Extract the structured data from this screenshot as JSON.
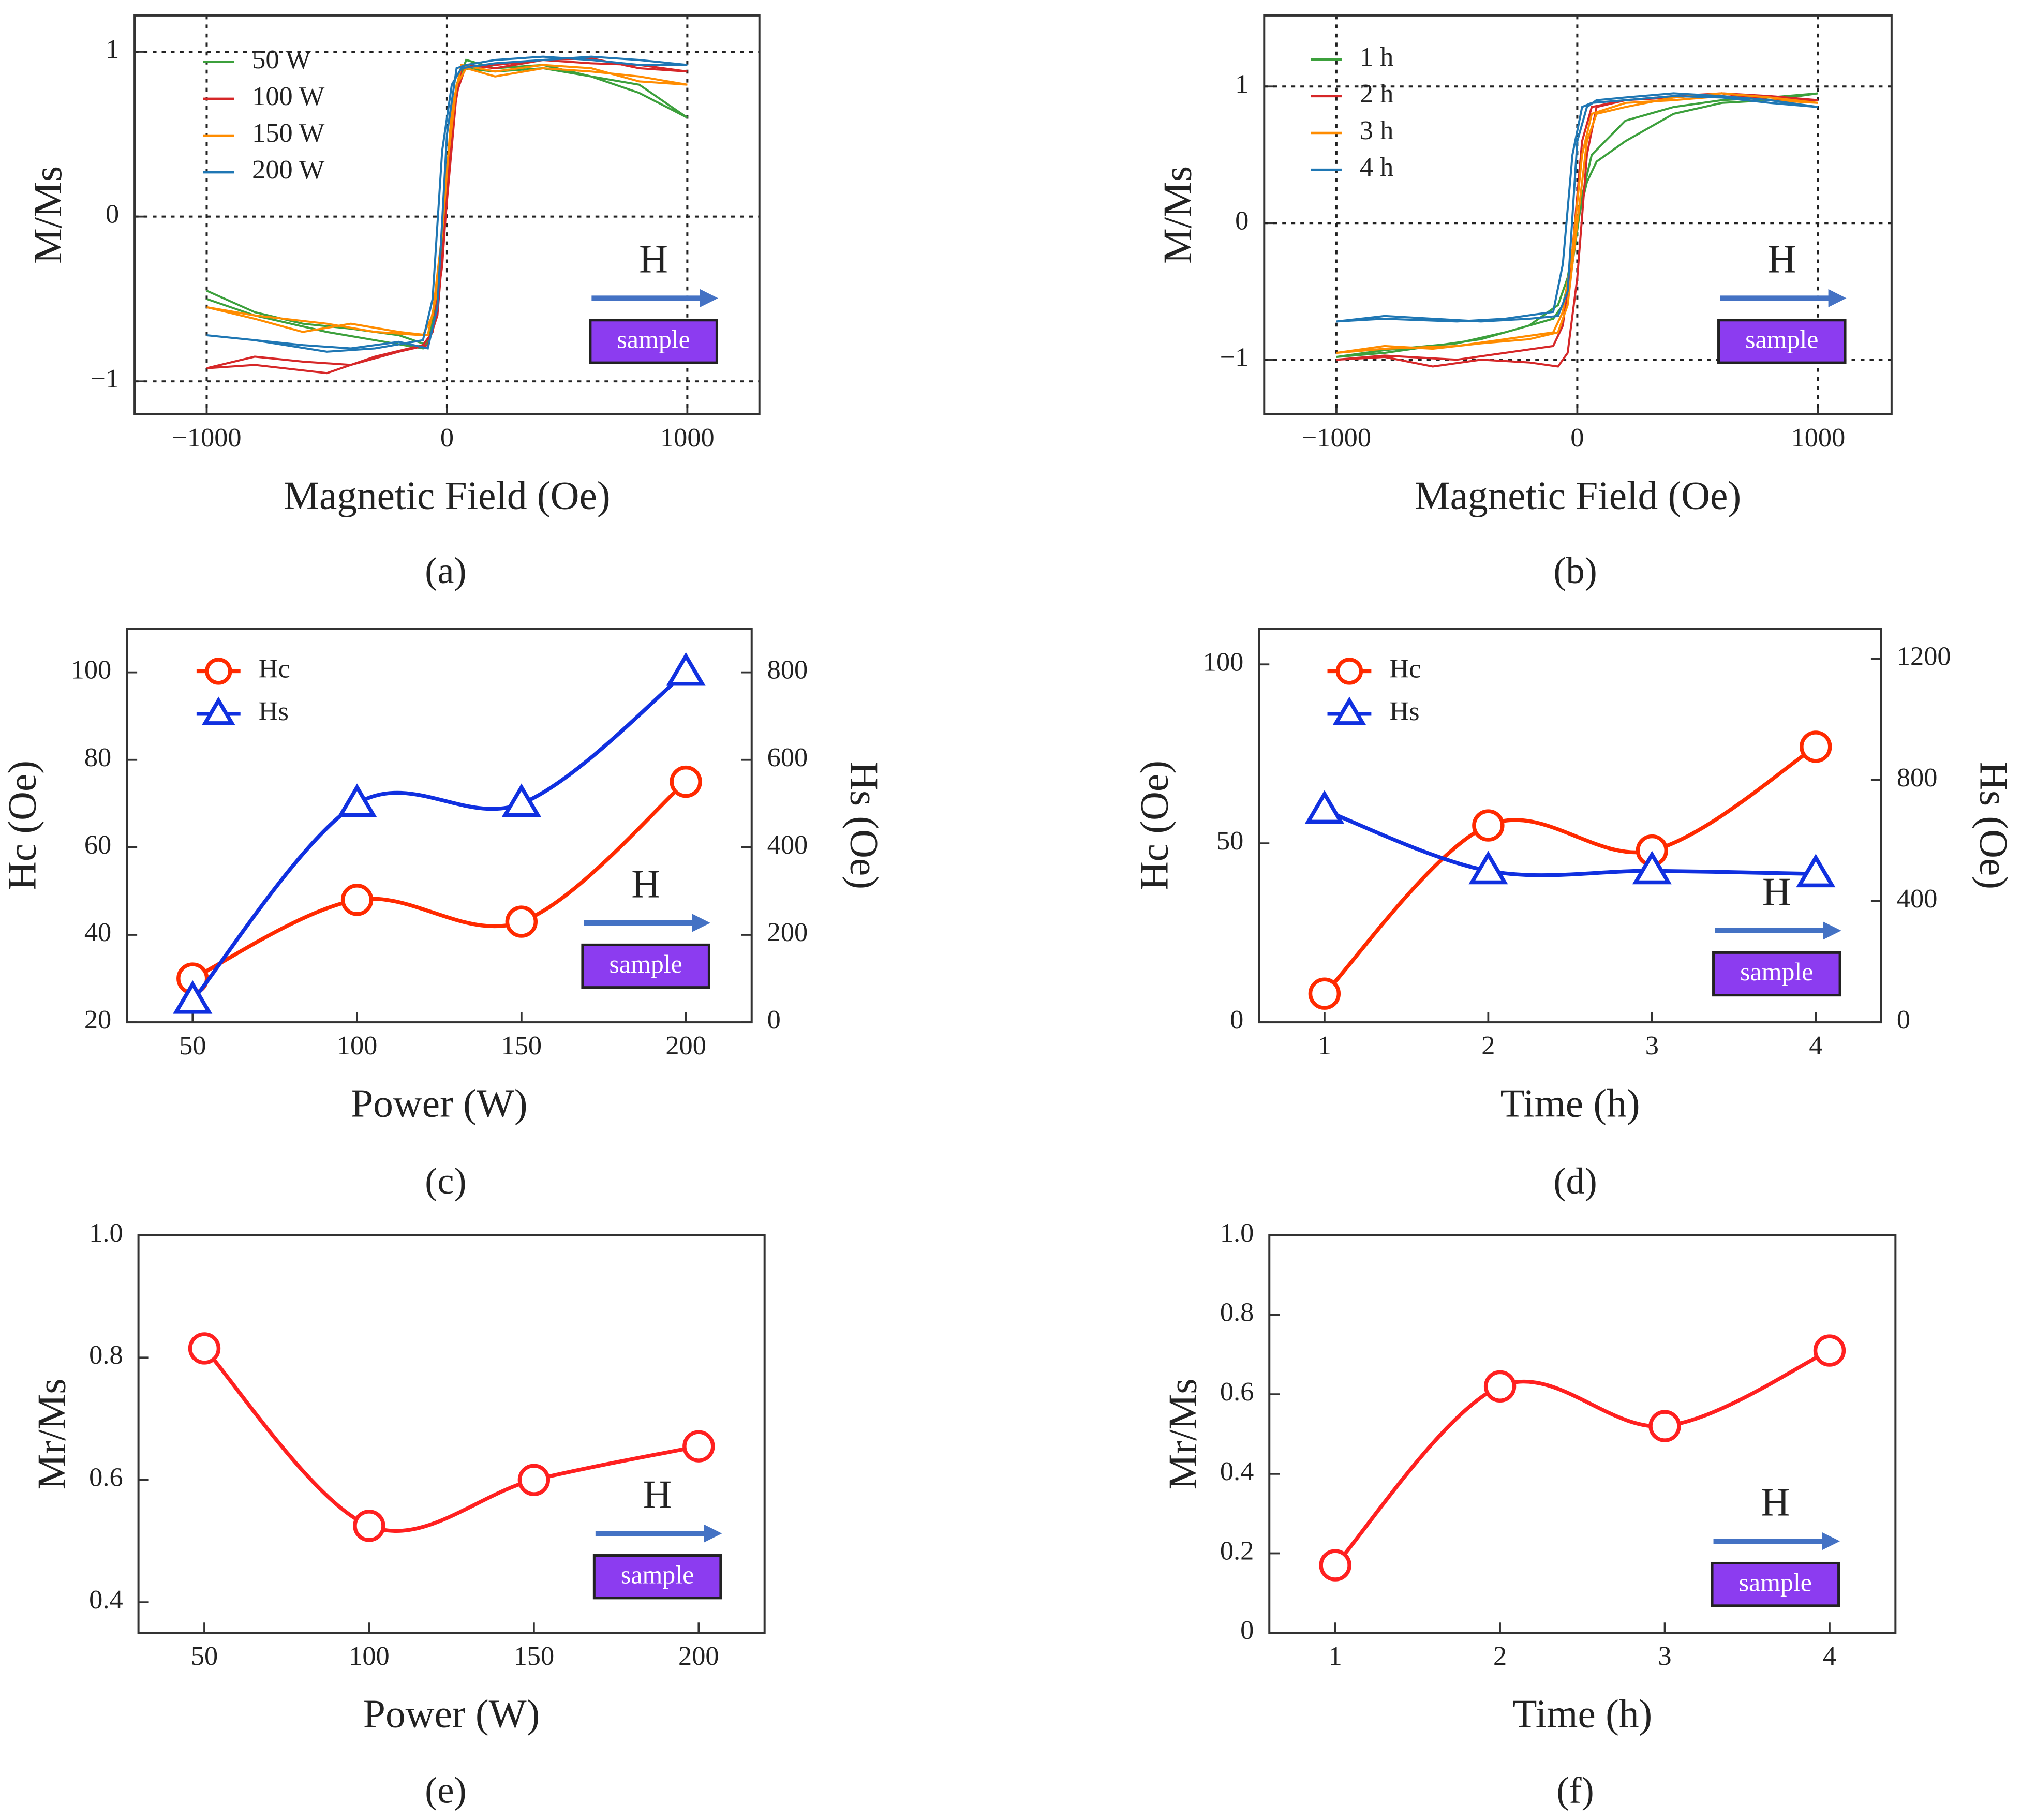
{
  "chart_data": [
    {
      "type": "line",
      "panel_label": "(a)",
      "xlabel": "Magnetic Field (Oe)",
      "ylabel": "M/Ms",
      "arrow_label": "H",
      "box_label": "sample",
      "xlim": [
        -1300,
        1300
      ],
      "xticks": [
        {
          "value": -1000,
          "label": "−1000"
        },
        0,
        1000
      ],
      "ylim": [
        -1.2,
        1.22
      ],
      "yticks": [
        {
          "value": -1,
          "label": "−1"
        },
        0,
        1
      ],
      "grid": "dotted",
      "legend": "upper left",
      "x": [
        -1000,
        -800,
        -600,
        -400,
        -200,
        -80,
        -40,
        0,
        40,
        80,
        200,
        400,
        600,
        800,
        1000,
        800,
        600,
        400,
        200,
        60,
        20,
        -20,
        -60,
        -100,
        -300,
        -500,
        -800,
        -1000
      ],
      "series": [
        {
          "name": "50 W",
          "color": "#3ca03c",
          "values": [
            -0.45,
            -0.58,
            -0.65,
            -0.68,
            -0.72,
            -0.78,
            -0.5,
            0.2,
            0.8,
            0.95,
            0.9,
            0.92,
            0.85,
            0.8,
            0.6,
            0.75,
            0.85,
            0.9,
            0.88,
            0.9,
            0.6,
            -0.2,
            -0.7,
            -0.8,
            -0.75,
            -0.7,
            -0.6,
            -0.5
          ]
        },
        {
          "name": "100 W",
          "color": "#d62728",
          "values": [
            -0.92,
            -0.85,
            -0.88,
            -0.9,
            -0.82,
            -0.78,
            -0.6,
            0.1,
            0.75,
            0.92,
            0.9,
            0.95,
            0.93,
            0.92,
            0.88,
            0.9,
            0.96,
            0.95,
            0.92,
            0.9,
            0.55,
            -0.3,
            -0.7,
            -0.78,
            -0.85,
            -0.95,
            -0.9,
            -0.92
          ]
        },
        {
          "name": "150 W",
          "color": "#ff8c00",
          "values": [
            -0.55,
            -0.62,
            -0.7,
            -0.65,
            -0.7,
            -0.72,
            -0.45,
            0.3,
            0.8,
            0.9,
            0.85,
            0.9,
            0.88,
            0.85,
            0.8,
            0.82,
            0.9,
            0.92,
            0.88,
            0.92,
            0.65,
            -0.1,
            -0.6,
            -0.72,
            -0.7,
            -0.65,
            -0.6,
            -0.55
          ]
        },
        {
          "name": "200 W",
          "color": "#1f77b4",
          "values": [
            -0.72,
            -0.75,
            -0.78,
            -0.8,
            -0.76,
            -0.8,
            -0.55,
            0.5,
            0.9,
            0.92,
            0.95,
            0.97,
            0.95,
            0.92,
            0.92,
            0.95,
            0.97,
            0.95,
            0.93,
            0.9,
            0.8,
            0.4,
            -0.5,
            -0.75,
            -0.8,
            -0.82,
            -0.75,
            -0.72
          ]
        }
      ]
    },
    {
      "type": "line",
      "panel_label": "(b)",
      "xlabel": "Magnetic Field (Oe)",
      "ylabel": "M/Ms",
      "arrow_label": "H",
      "box_label": "sample",
      "xlim": [
        -1300,
        1305
      ],
      "xticks": [
        {
          "value": -1000,
          "label": "−1000"
        },
        0,
        1000
      ],
      "ylim": [
        -1.4,
        1.52
      ],
      "yticks": [
        {
          "value": -1,
          "label": "−1"
        },
        0,
        1
      ],
      "grid": "dotted",
      "legend": "upper left",
      "x": [
        -1000,
        -800,
        -600,
        -400,
        -200,
        -80,
        -40,
        0,
        40,
        80,
        200,
        400,
        600,
        800,
        1000,
        800,
        600,
        400,
        200,
        60,
        20,
        -20,
        -60,
        -100,
        -300,
        -500,
        -800,
        -1000
      ],
      "series": [
        {
          "name": "1 h",
          "color": "#3ca03c",
          "values": [
            -0.98,
            -0.95,
            -0.9,
            -0.85,
            -0.75,
            -0.6,
            -0.4,
            0,
            0.3,
            0.45,
            0.6,
            0.8,
            0.88,
            0.9,
            0.95,
            0.92,
            0.9,
            0.85,
            0.75,
            0.5,
            0.2,
            -0.3,
            -0.6,
            -0.7,
            -0.8,
            -0.88,
            -0.93,
            -0.98
          ]
        },
        {
          "name": "2 h",
          "color": "#d62728",
          "values": [
            -1,
            -0.98,
            -1.05,
            -1,
            -1.02,
            -1.05,
            -0.95,
            -0.4,
            0.5,
            0.85,
            0.9,
            0.92,
            0.95,
            0.93,
            0.9,
            0.9,
            0.95,
            0.93,
            0.9,
            0.85,
            0.6,
            -0.2,
            -0.75,
            -0.9,
            -0.95,
            -1,
            -0.97,
            -1
          ]
        },
        {
          "name": "3 h",
          "color": "#ff8c00",
          "values": [
            -0.95,
            -0.9,
            -0.92,
            -0.88,
            -0.85,
            -0.8,
            -0.6,
            0,
            0.6,
            0.8,
            0.85,
            0.92,
            0.95,
            0.92,
            0.88,
            0.9,
            0.93,
            0.9,
            0.88,
            0.8,
            0.5,
            -0.2,
            -0.65,
            -0.8,
            -0.85,
            -0.9,
            -0.92,
            -0.95
          ]
        },
        {
          "name": "4 h",
          "color": "#1f77b4",
          "values": [
            -0.72,
            -0.68,
            -0.7,
            -0.72,
            -0.7,
            -0.68,
            -0.5,
            0.6,
            0.85,
            0.9,
            0.92,
            0.95,
            0.93,
            0.9,
            0.85,
            0.88,
            0.92,
            0.93,
            0.9,
            0.88,
            0.85,
            0.5,
            -0.3,
            -0.65,
            -0.7,
            -0.72,
            -0.7,
            -0.72
          ]
        }
      ]
    },
    {
      "type": "line",
      "panel_label": "(c)",
      "xlabel": "Power (W)",
      "ylabel": "Hc (Oe)",
      "y2label": "Hs (Oe)",
      "arrow_label": "H",
      "box_label": "sample",
      "smooth": true,
      "legend": "upper left",
      "x": [
        50,
        100,
        150,
        200
      ],
      "xlim": [
        30,
        220
      ],
      "xticks": [
        50,
        100,
        150,
        200
      ],
      "ylim": [
        20,
        110
      ],
      "yticks": [
        20,
        40,
        60,
        80,
        100
      ],
      "y2lim": [
        0,
        900
      ],
      "y2ticks": [
        0,
        200,
        400,
        600,
        800
      ],
      "series": [
        {
          "name": "Hc",
          "color": "#ff2a00",
          "marker": "circle",
          "values": [
            30,
            48,
            43,
            75
          ]
        },
        {
          "name": "Hs",
          "color": "#1030e0",
          "marker": "triangle",
          "axis": "y2",
          "values": [
            50,
            500,
            500,
            800
          ]
        }
      ]
    },
    {
      "type": "line",
      "panel_label": "(d)",
      "xlabel": "Time (h)",
      "ylabel": "Hc (Oe)",
      "y2label": "Hs (Oe)",
      "arrow_label": "H",
      "box_label": "sample",
      "smooth": true,
      "legend": "upper left",
      "x": [
        1,
        2,
        3,
        4
      ],
      "xlim": [
        0.6,
        4.4
      ],
      "xticks": [
        1,
        2,
        3,
        4
      ],
      "ylim": [
        0,
        110
      ],
      "yticks": [
        0,
        50,
        100
      ],
      "y2lim": [
        0,
        1300
      ],
      "y2ticks": [
        0,
        400,
        800,
        1200
      ],
      "series": [
        {
          "name": "Hc",
          "color": "#ff2a00",
          "marker": "circle",
          "values": [
            8,
            55,
            48,
            77
          ]
        },
        {
          "name": "Hs",
          "color": "#1030e0",
          "marker": "triangle",
          "axis": "y2",
          "values": [
            700,
            500,
            500,
            490
          ]
        }
      ]
    },
    {
      "type": "line",
      "panel_label": "(e)",
      "xlabel": "Power (W)",
      "ylabel": "Mr/Ms",
      "arrow_label": "H",
      "box_label": "sample",
      "smooth": true,
      "x": [
        50,
        100,
        150,
        200
      ],
      "xlim": [
        30,
        220
      ],
      "xticks": [
        50,
        100,
        150,
        200
      ],
      "ylim": [
        0.35,
        1
      ],
      "yticks": [
        0.4,
        0.6,
        0.8,
        {
          "value": 1,
          "label": "1.0"
        }
      ],
      "series": [
        {
          "color": "#ff2020",
          "marker": "circle",
          "values": [
            0.815,
            0.525,
            0.6,
            0.655
          ]
        }
      ]
    },
    {
      "type": "line",
      "panel_label": "(f)",
      "xlabel": "Time (h)",
      "ylabel": "Mr/Ms",
      "arrow_label": "H",
      "box_label": "sample",
      "smooth": true,
      "x": [
        1,
        2,
        3,
        4
      ],
      "xlim": [
        0.6,
        4.4
      ],
      "xticks": [
        1,
        2,
        3,
        4
      ],
      "ylim": [
        0,
        1
      ],
      "yticks": [
        0,
        0.2,
        0.4,
        0.6,
        0.8,
        {
          "value": 1,
          "label": "1.0"
        }
      ],
      "series": [
        {
          "color": "#ff2020",
          "marker": "circle",
          "values": [
            0.17,
            0.62,
            0.52,
            0.71
          ]
        }
      ]
    }
  ]
}
